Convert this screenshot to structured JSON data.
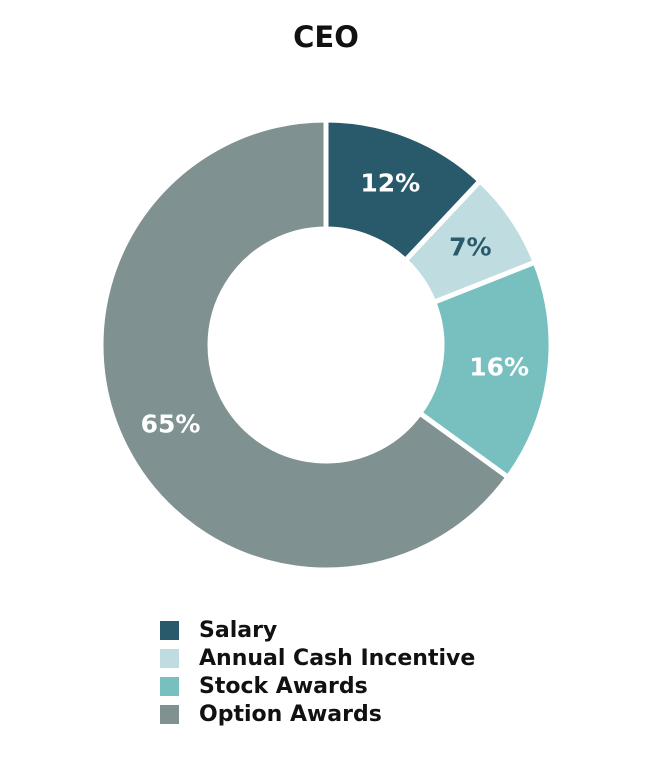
{
  "chart_data": {
    "type": "pie",
    "style": "donut",
    "title": "CEO",
    "categories": [
      "Salary",
      "Annual Cash Incentive",
      "Stock Awards",
      "Option Awards"
    ],
    "values": [
      12,
      7,
      16,
      65
    ],
    "data_labels": [
      "12%",
      "7%",
      "16%",
      "65%"
    ],
    "colors": [
      "#285a6b",
      "#bfdde0",
      "#78bfc0",
      "#7f9190"
    ],
    "label_colors": [
      "#ffffff",
      "#285a6b",
      "#ffffff",
      "#ffffff"
    ],
    "legend_position": "bottom"
  }
}
